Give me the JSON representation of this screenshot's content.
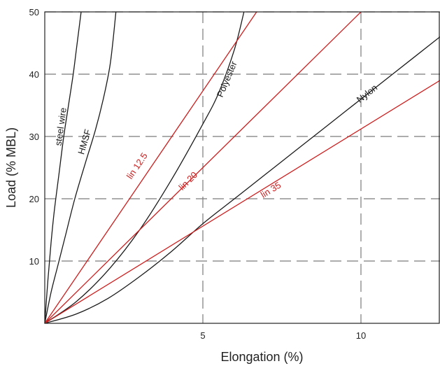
{
  "chart_data": {
    "type": "line",
    "title": "",
    "xlabel": "Elongation (%)",
    "ylabel": "Load (% MBL)",
    "xlim": [
      0,
      12.5
    ],
    "ylim": [
      0,
      50
    ],
    "xticks": [
      5,
      10
    ],
    "yticks": [
      10,
      20,
      30,
      40,
      50
    ],
    "x_tick_labels": [
      "5",
      "10"
    ],
    "y_tick_labels": [
      "10",
      "20",
      "30",
      "40",
      "50"
    ],
    "grid": "dashed at x ticks and y ticks",
    "colors": {
      "material": "#1a1a1a",
      "linear": "#cc1f1f",
      "grid": "#7a7a7a"
    },
    "series": [
      {
        "name": "steel wire",
        "color": "#1a1a1a",
        "x": [
          0,
          0.1,
          0.2,
          0.3,
          0.45,
          0.6,
          0.75,
          0.9,
          1.0,
          1.1,
          1.15
        ],
        "y": [
          0,
          7,
          13,
          18,
          24,
          30,
          35,
          40,
          44,
          48,
          50
        ]
      },
      {
        "name": "HMSF",
        "color": "#1a1a1a",
        "x": [
          0,
          0.2,
          0.4,
          0.65,
          0.95,
          1.3,
          1.6,
          1.85,
          2.05,
          2.15,
          2.25
        ],
        "y": [
          0,
          5,
          9,
          14,
          20,
          26,
          31,
          36,
          41,
          45,
          50
        ]
      },
      {
        "name": "Polyester",
        "color": "#1a1a1a",
        "x": [
          0,
          1,
          2,
          3,
          4,
          5,
          5.5,
          6,
          6.3
        ],
        "y": [
          0,
          3.5,
          8.5,
          15,
          23,
          32,
          37,
          44,
          50
        ]
      },
      {
        "name": "Nylon",
        "color": "#1a1a1a",
        "x": [
          0,
          1,
          2,
          3,
          4,
          5,
          6,
          7,
          8,
          9,
          10,
          11,
          12.5
        ],
        "y": [
          0,
          1.5,
          4,
          7.5,
          11.5,
          16,
          20,
          24,
          28,
          32,
          36,
          40,
          46
        ]
      },
      {
        "name": "lin 12.5",
        "color": "#cc1f1f",
        "x": [
          0,
          6.7
        ],
        "y": [
          0,
          50
        ]
      },
      {
        "name": "lin 20",
        "color": "#cc1f1f",
        "x": [
          0,
          10
        ],
        "y": [
          0,
          50
        ]
      },
      {
        "name": "lin 35",
        "color": "#cc1f1f",
        "x": [
          0,
          12.5
        ],
        "y": [
          0,
          39
        ]
      }
    ],
    "annotations": [
      {
        "text": "steel wire",
        "x": 0.6,
        "y": 31.5,
        "color": "#1a1a1a"
      },
      {
        "text": "HMSF",
        "x": 1.35,
        "y": 29,
        "color": "#1a1a1a"
      },
      {
        "text": "Polyester",
        "x": 5.85,
        "y": 39,
        "color": "#1a1a1a"
      },
      {
        "text": "Nylon",
        "x": 10.25,
        "y": 36.5,
        "color": "#1a1a1a"
      },
      {
        "text": "lin 12.5",
        "x": 3.0,
        "y": 25,
        "color": "#cc1f1f"
      },
      {
        "text": "lin 20",
        "x": 4.6,
        "y": 22.5,
        "color": "#cc1f1f"
      },
      {
        "text": "lin 35",
        "x": 7.2,
        "y": 21,
        "color": "#cc1f1f"
      }
    ]
  }
}
